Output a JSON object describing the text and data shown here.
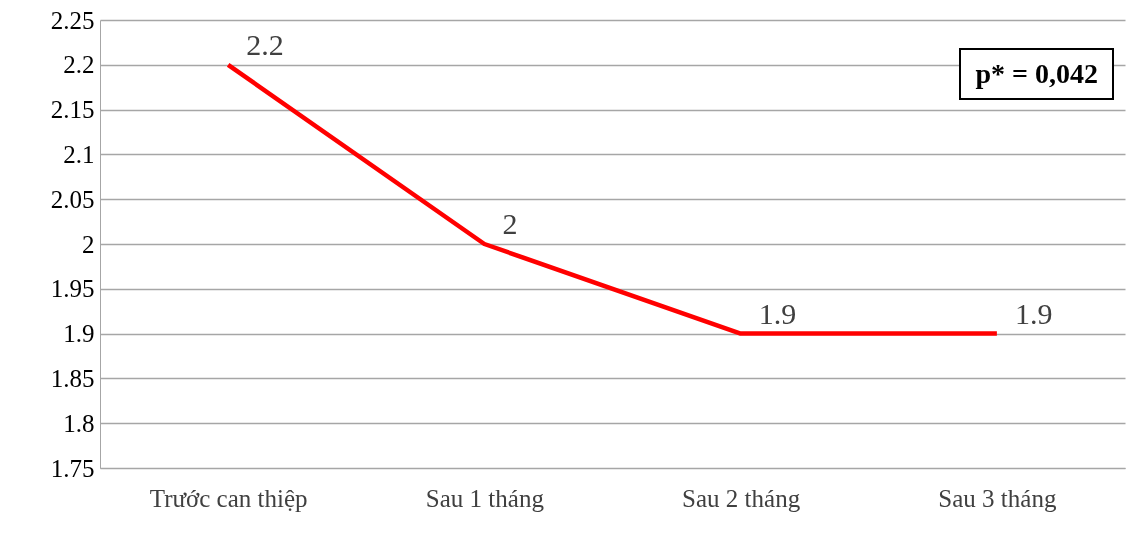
{
  "chart_data": {
    "type": "line",
    "categories": [
      "Trước can thiệp",
      "Sau 1 tháng",
      "Sau 2 tháng",
      "Sau 3 tháng"
    ],
    "series": [
      {
        "color": "#ff0000",
        "values": [
          2.2,
          2,
          1.9,
          1.9
        ]
      }
    ],
    "ylim": [
      1.75,
      2.25
    ],
    "yticks": [
      1.75,
      1.8,
      1.85,
      1.9,
      1.95,
      2,
      2.05,
      2.1,
      2.15,
      2.2,
      2.25
    ],
    "grid": "y",
    "data_labels": true,
    "marker": "none",
    "annotations": [
      "p* = 0,042"
    ]
  }
}
